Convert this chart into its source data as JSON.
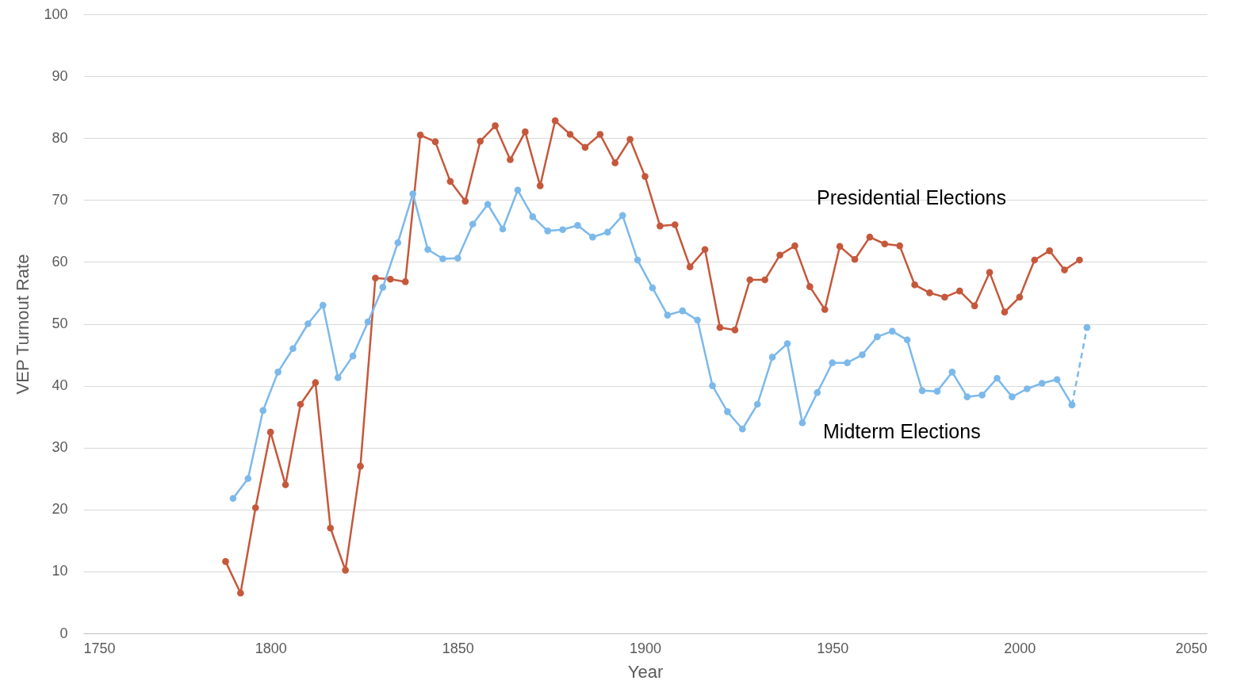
{
  "chart_data": {
    "type": "line",
    "xlabel": "Year",
    "ylabel": "VEP Turnout Rate",
    "xlim": [
      1750,
      2050
    ],
    "xticks": [
      1750,
      1800,
      1850,
      1900,
      1950,
      2000,
      2050
    ],
    "ylim": [
      0,
      100
    ],
    "yticks": [
      0,
      10,
      20,
      30,
      40,
      50,
      60,
      70,
      80,
      90,
      100
    ],
    "grid": "y",
    "marker": "circle",
    "line_style": "solid",
    "series": [
      {
        "name": "Presidential Elections",
        "color": "#c5583b",
        "x": [
          1788,
          1792,
          1796,
          1800,
          1804,
          1808,
          1812,
          1816,
          1820,
          1824,
          1828,
          1832,
          1836,
          1840,
          1844,
          1848,
          1852,
          1856,
          1860,
          1864,
          1868,
          1872,
          1876,
          1880,
          1884,
          1888,
          1892,
          1896,
          1900,
          1904,
          1908,
          1912,
          1916,
          1920,
          1924,
          1928,
          1932,
          1936,
          1940,
          1944,
          1948,
          1952,
          1956,
          1960,
          1964,
          1968,
          1972,
          1976,
          1980,
          1984,
          1988,
          1992,
          1996,
          2000,
          2004,
          2008,
          2012,
          2016
        ],
        "values": [
          11.6,
          6.5,
          20.3,
          32.5,
          24,
          37,
          40.5,
          17,
          10.2,
          27,
          57.4,
          57.2,
          56.8,
          80.5,
          79.4,
          73,
          69.8,
          79.5,
          82,
          76.5,
          81,
          72.3,
          82.8,
          80.6,
          78.5,
          80.6,
          76,
          79.8,
          73.8,
          65.8,
          66,
          59.2,
          62,
          49.4,
          49,
          57.1,
          57.1,
          61.1,
          62.6,
          56,
          52.3,
          62.5,
          60.4,
          64,
          62.9,
          62.6,
          56.3,
          55,
          54.3,
          55.3,
          52.9,
          58.3,
          51.9,
          54.3,
          60.3,
          61.8,
          58.7,
          60.3
        ]
      },
      {
        "name": "Midterm Elections",
        "color": "#7cb9eb",
        "x": [
          1790,
          1794,
          1798,
          1802,
          1806,
          1810,
          1814,
          1818,
          1822,
          1826,
          1830,
          1834,
          1838,
          1842,
          1846,
          1850,
          1854,
          1858,
          1862,
          1866,
          1870,
          1874,
          1878,
          1882,
          1886,
          1890,
          1894,
          1898,
          1902,
          1906,
          1910,
          1914,
          1918,
          1922,
          1926,
          1930,
          1934,
          1938,
          1942,
          1946,
          1950,
          1954,
          1958,
          1962,
          1966,
          1970,
          1974,
          1978,
          1982,
          1986,
          1990,
          1994,
          1998,
          2002,
          2006,
          2010,
          2014
        ],
        "values": [
          21.8,
          25,
          36,
          42.2,
          46,
          50,
          53,
          41.3,
          44.8,
          50.3,
          55.9,
          63.1,
          71,
          62,
          60.5,
          60.6,
          66.1,
          69.3,
          65.3,
          71.6,
          67.3,
          65,
          65.2,
          65.9,
          64,
          64.8,
          67.5,
          60.3,
          55.8,
          51.4,
          52.1,
          50.6,
          40,
          35.8,
          33,
          37,
          44.6,
          46.8,
          34,
          38.9,
          43.7,
          43.7,
          45,
          47.9,
          48.8,
          47.4,
          39.2,
          39.1,
          42.2,
          38.2,
          38.5,
          41.2,
          38.2,
          39.5,
          40.4,
          41,
          36.9
        ]
      },
      {
        "color": "#7cb9eb",
        "line_style": "dashed",
        "x": [
          2014,
          2018
        ],
        "values": [
          36.9,
          49.4
        ]
      }
    ]
  }
}
